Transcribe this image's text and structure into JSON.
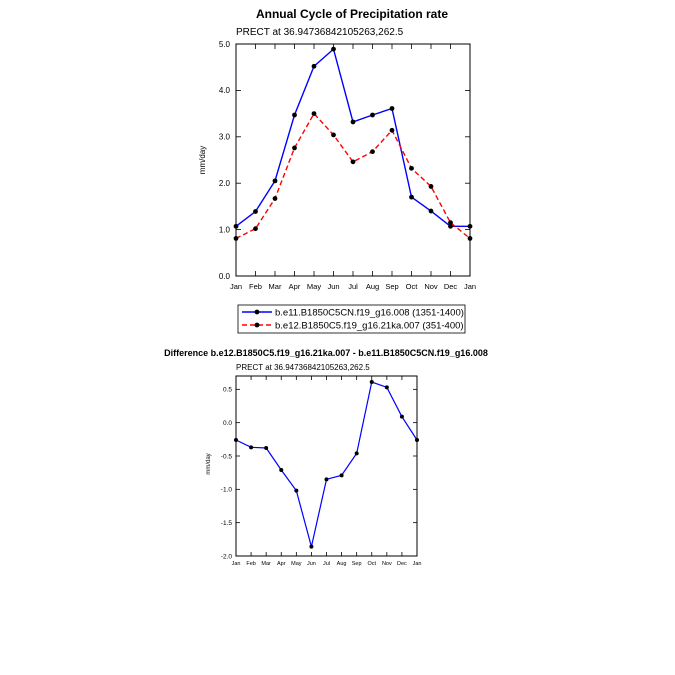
{
  "chart_data": [
    {
      "type": "line",
      "title": "Annual Cycle of Precipitation rate",
      "subtitle": "PRECT at 36.94736842105263,262.5",
      "xlabel": "",
      "ylabel": "mm/day",
      "categories": [
        "Jan",
        "Feb",
        "Mar",
        "Apr",
        "May",
        "Jun",
        "Jul",
        "Aug",
        "Sep",
        "Oct",
        "Nov",
        "Dec",
        "Jan"
      ],
      "ylim": [
        0,
        5
      ],
      "yticks": [
        0,
        1,
        2,
        3,
        4,
        5
      ],
      "ytick_labels": [
        "0.0",
        "1.0",
        "2.0",
        "3.0",
        "4.0",
        "5.0"
      ],
      "grid": false,
      "legend_position": "bottom",
      "series": [
        {
          "name": "b.e11.B1850C5CN.f19_g16.008 (1351-1400)",
          "color": "#0000ff",
          "dash": "solid",
          "values": [
            1.07,
            1.39,
            2.05,
            3.47,
            4.52,
            4.89,
            3.32,
            3.47,
            3.61,
            1.7,
            1.4,
            1.07,
            1.07
          ]
        },
        {
          "name": "b.e12.B1850C5.f19_g16.21ka.007 (351-400)",
          "color": "#ff0000",
          "dash": "dashed",
          "values": [
            0.81,
            1.02,
            1.67,
            2.76,
            3.5,
            3.04,
            2.46,
            2.68,
            3.14,
            2.32,
            1.93,
            1.15,
            0.81
          ]
        }
      ]
    },
    {
      "type": "line",
      "title": "Difference b.e12.B1850C5.f19_g16.21ka.007 - b.e11.B1850C5CN.f19_g16.008",
      "subtitle": "PRECT at 36.94736842105263,262.5",
      "xlabel": "",
      "ylabel": "mm/day",
      "categories": [
        "Jan",
        "Feb",
        "Mar",
        "Apr",
        "May",
        "Jun",
        "Jul",
        "Aug",
        "Sep",
        "Oct",
        "Nov",
        "Dec",
        "Jan"
      ],
      "ylim": [
        -2,
        0.7
      ],
      "yticks": [
        -2,
        -1.5,
        -1,
        -0.5,
        0,
        0.5
      ],
      "ytick_labels": [
        "-2.0",
        "-1.5",
        "-1.0",
        "-0.5",
        "0.0",
        "0.5"
      ],
      "grid": false,
      "series": [
        {
          "color": "#0000ff",
          "dash": "solid",
          "values": [
            -0.26,
            -0.37,
            -0.38,
            -0.71,
            -1.02,
            -1.86,
            -0.85,
            -0.79,
            -0.46,
            0.61,
            0.53,
            0.09,
            -0.26
          ]
        }
      ]
    }
  ]
}
